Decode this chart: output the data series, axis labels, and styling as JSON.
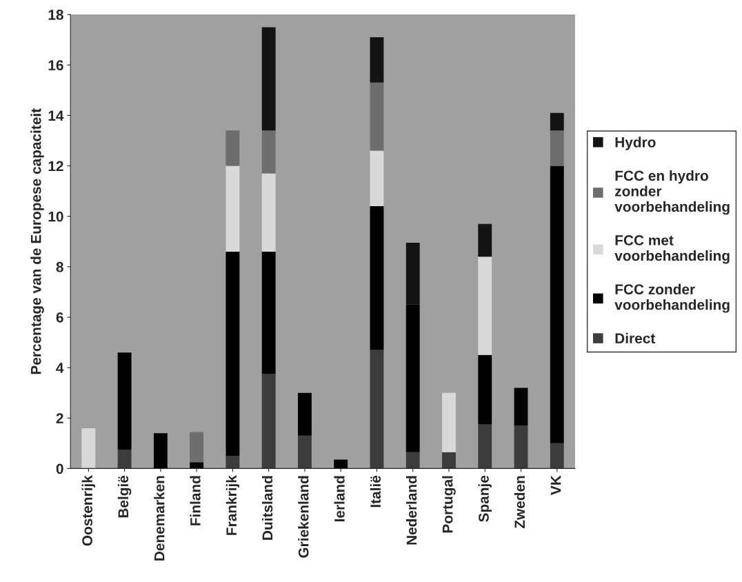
{
  "chart_data": {
    "type": "bar",
    "stacked": true,
    "ylabel": "Percentage van de Europese capaciteit",
    "categories": [
      "Oostenrijk",
      "België",
      "Denemarken",
      "Finland",
      "Frankrijk",
      "Duitsland",
      "Griekenland",
      "Ierland",
      "Italië",
      "Nederland",
      "Portugal",
      "Spanje",
      "Zweden",
      "VK"
    ],
    "series": [
      {
        "name": "Direct",
        "color": "#3c3c3c",
        "values": [
          0,
          0.75,
          0,
          0,
          0.5,
          3.75,
          1.3,
          0,
          4.7,
          0.65,
          0.65,
          1.75,
          1.7,
          1.0
        ]
      },
      {
        "name": "FCC zonder voorbehandeling",
        "color": "#000000",
        "values": [
          0,
          3.85,
          1.4,
          0.25,
          8.1,
          4.85,
          1.7,
          0.35,
          5.7,
          5.85,
          0,
          2.75,
          1.5,
          11.0
        ]
      },
      {
        "name": "FCC met voorbehandeling",
        "color": "#d9d9d9",
        "values": [
          1.6,
          0,
          0,
          0,
          3.4,
          3.1,
          0,
          0,
          2.2,
          0,
          2.35,
          3.9,
          0,
          0
        ]
      },
      {
        "name": "FCC en hydro zonder voorbehandeling",
        "color": "#6e6e6e",
        "values": [
          0,
          0,
          0,
          1.2,
          1.4,
          1.7,
          0,
          0,
          2.7,
          0,
          0,
          0,
          0,
          1.4
        ]
      },
      {
        "name": "Hydro",
        "color": "#141414",
        "values": [
          0,
          0,
          0,
          0,
          0,
          4.1,
          0,
          0,
          1.8,
          2.45,
          0,
          1.3,
          0,
          0.7
        ]
      }
    ],
    "ylim": [
      0,
      18
    ],
    "yticks": [
      0,
      2,
      4,
      6,
      8,
      10,
      12,
      14,
      16,
      18
    ],
    "grid": false,
    "legend": "right"
  }
}
